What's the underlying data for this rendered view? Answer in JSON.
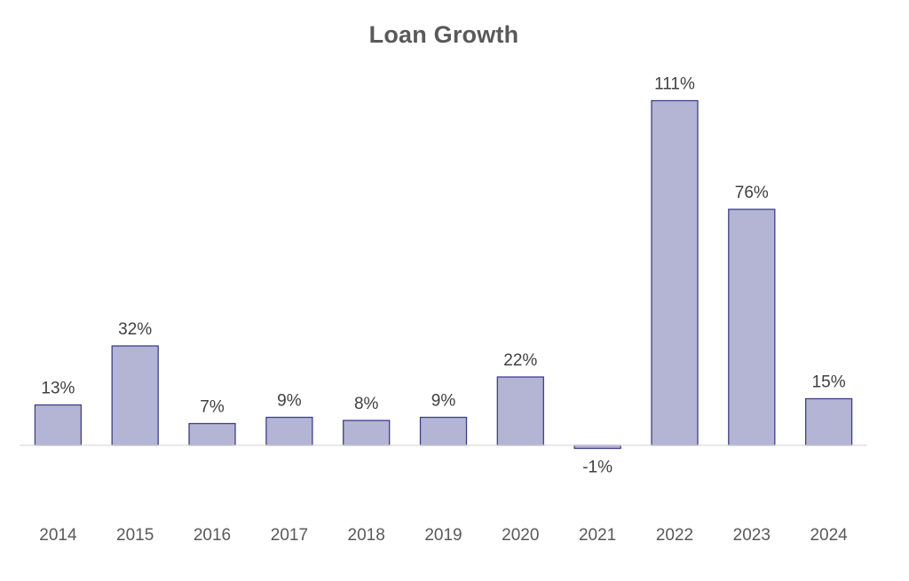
{
  "chart_data": {
    "type": "bar",
    "title": "Loan Growth",
    "xlabel": "",
    "ylabel": "",
    "categories": [
      "2014",
      "2015",
      "2016",
      "2017",
      "2018",
      "2019",
      "2020",
      "2021",
      "2022",
      "2023",
      "2024"
    ],
    "values": [
      13,
      32,
      7,
      9,
      8,
      9,
      22,
      -1,
      111,
      76,
      15
    ],
    "data_labels": [
      "13%",
      "32%",
      "7%",
      "9%",
      "8%",
      "9%",
      "22%",
      "-1%",
      "111%",
      "76%",
      "15%"
    ],
    "ylim": [
      -1,
      111
    ],
    "grid": false,
    "legend": "none",
    "bar_fill": "#b4b4d4",
    "bar_stroke": "#3c3f8c",
    "axis_color": "#d9d9d9"
  }
}
